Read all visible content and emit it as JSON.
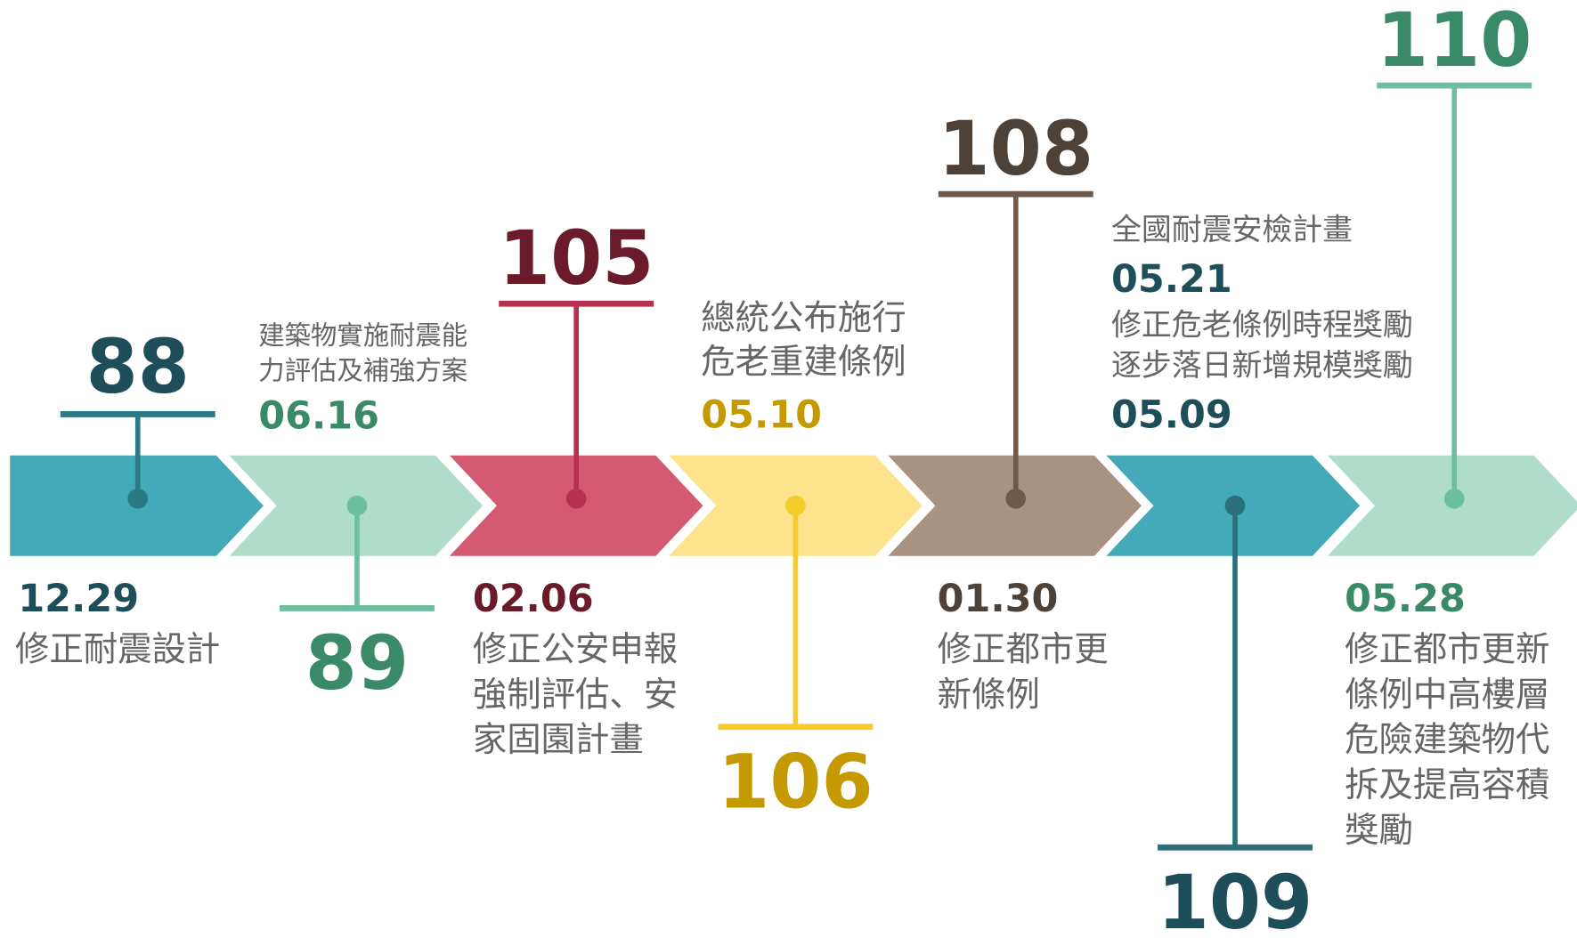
{
  "timeline": [
    {
      "year": "88",
      "date": "12.29",
      "text": [
        "修正耐震設計"
      ]
    },
    {
      "year": "89",
      "date": "06.16",
      "text": [
        "建築物實施耐震能",
        "力評估及補強方案"
      ]
    },
    {
      "year": "105",
      "date": "02.06",
      "text": [
        "修正公安申報",
        "強制評估、安",
        "家固園計畫"
      ]
    },
    {
      "year": "106",
      "date": "05.10",
      "text": [
        "總統公布施行",
        "危老重建條例"
      ]
    },
    {
      "year": "108",
      "date": "01.30",
      "text": [
        "修正都市更",
        "新條例"
      ]
    },
    {
      "year": "109",
      "events": [
        {
          "text": [
            "全國耐震安檢計畫"
          ],
          "date": "05.21"
        },
        {
          "text": [
            "修正危老條例時程獎勵",
            "逐步落日新增規模獎勵"
          ],
          "date": "05.09"
        }
      ]
    },
    {
      "year": "110",
      "date": "05.28",
      "text": [
        "修正都市更新",
        "條例中高樓層",
        "危險建築物代",
        "拆及提高容積",
        "獎勵"
      ]
    }
  ]
}
